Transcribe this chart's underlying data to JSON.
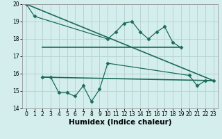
{
  "xlabel": "Humidex (Indice chaleur)",
  "line1_x": [
    0,
    1,
    10,
    11,
    12,
    13,
    14,
    15,
    16,
    17,
    18,
    19
  ],
  "line1_y": [
    20.0,
    19.3,
    18.0,
    18.4,
    18.9,
    19.0,
    18.4,
    18.0,
    18.4,
    18.7,
    17.8,
    17.5
  ],
  "line2_x": [
    2,
    3,
    4,
    5,
    6,
    7,
    8,
    9,
    10,
    20,
    21,
    22,
    23
  ],
  "line2_y": [
    15.8,
    15.8,
    14.9,
    14.9,
    14.7,
    15.3,
    14.4,
    15.1,
    16.6,
    15.9,
    15.3,
    15.6,
    15.6
  ],
  "trend1_x": [
    2,
    19
  ],
  "trend1_y": [
    17.5,
    17.5
  ],
  "trend2_x": [
    0,
    23
  ],
  "trend2_y": [
    20.0,
    15.6
  ],
  "trend3_x": [
    2,
    23
  ],
  "trend3_y": [
    15.8,
    15.6
  ],
  "line_color": "#1a6b5a",
  "bg_color": "#d4eded",
  "grid_color": "#b8d4d4",
  "ylim": [
    14,
    20
  ],
  "yticks": [
    14,
    15,
    16,
    17,
    18,
    19,
    20
  ],
  "xlim": [
    -0.5,
    23.5
  ],
  "xticks": [
    0,
    1,
    2,
    3,
    4,
    5,
    6,
    7,
    8,
    9,
    10,
    11,
    12,
    13,
    14,
    15,
    16,
    17,
    18,
    19,
    20,
    21,
    22,
    23
  ],
  "tick_fontsize": 5.5,
  "label_fontsize": 7.5,
  "marker": "D",
  "markersize": 2.5,
  "linewidth": 0.9
}
